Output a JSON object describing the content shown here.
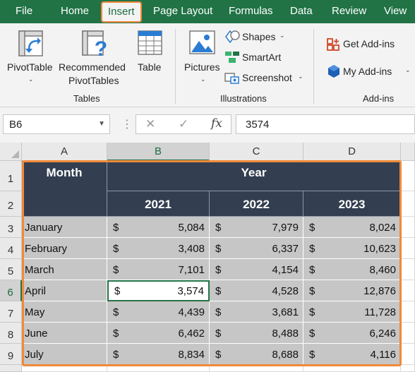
{
  "ribbon_tabs": [
    {
      "label": "File"
    },
    {
      "label": "Home"
    },
    {
      "label": "Insert"
    },
    {
      "label": "Page Layout"
    },
    {
      "label": "Formulas"
    },
    {
      "label": "Data"
    },
    {
      "label": "Review"
    },
    {
      "label": "View"
    }
  ],
  "active_tab": "Insert",
  "ribbon": {
    "tables_group": {
      "label": "Tables",
      "pivot_table": "PivotTable",
      "recommended_line1": "Recommended",
      "recommended_line2": "PivotTables",
      "table": "Table"
    },
    "illustrations_group": {
      "label": "Illustrations",
      "pictures": "Pictures",
      "shapes": "Shapes",
      "smartart": "SmartArt",
      "screenshot": "Screenshot"
    },
    "addins_group": {
      "label": "Add-ins",
      "get_addins": "Get Add-ins",
      "my_addins": "My Add-ins"
    }
  },
  "formula_bar": {
    "name_box": "B6",
    "formula": "3574"
  },
  "columns": [
    "A",
    "B",
    "C",
    "D"
  ],
  "rows": [
    "1",
    "2",
    "3",
    "4",
    "5",
    "6",
    "7",
    "8",
    "9"
  ],
  "selected_cell": {
    "column": "B",
    "row": "6"
  },
  "table": {
    "month_header": "Month",
    "year_header": "Year",
    "years": [
      "2021",
      "2022",
      "2023"
    ],
    "currency": "$",
    "records": [
      {
        "month": "January",
        "values": [
          "5,084",
          "7,979",
          "8,024"
        ]
      },
      {
        "month": "February",
        "values": [
          "3,408",
          "6,337",
          "10,623"
        ]
      },
      {
        "month": "March",
        "values": [
          "7,101",
          "4,154",
          "8,460"
        ]
      },
      {
        "month": "April",
        "values": [
          "3,574",
          "4,528",
          "12,876"
        ]
      },
      {
        "month": "May",
        "values": [
          "4,439",
          "3,681",
          "11,728"
        ]
      },
      {
        "month": "June",
        "values": [
          "6,462",
          "8,488",
          "6,246"
        ]
      },
      {
        "month": "July",
        "values": [
          "8,834",
          "8,688",
          "4,116"
        ]
      }
    ]
  },
  "colors": {
    "excel_green": "#217346",
    "header_fill": "#333f50",
    "data_fill": "#c6c6c6",
    "highlight_orange": "#f08a3a"
  }
}
